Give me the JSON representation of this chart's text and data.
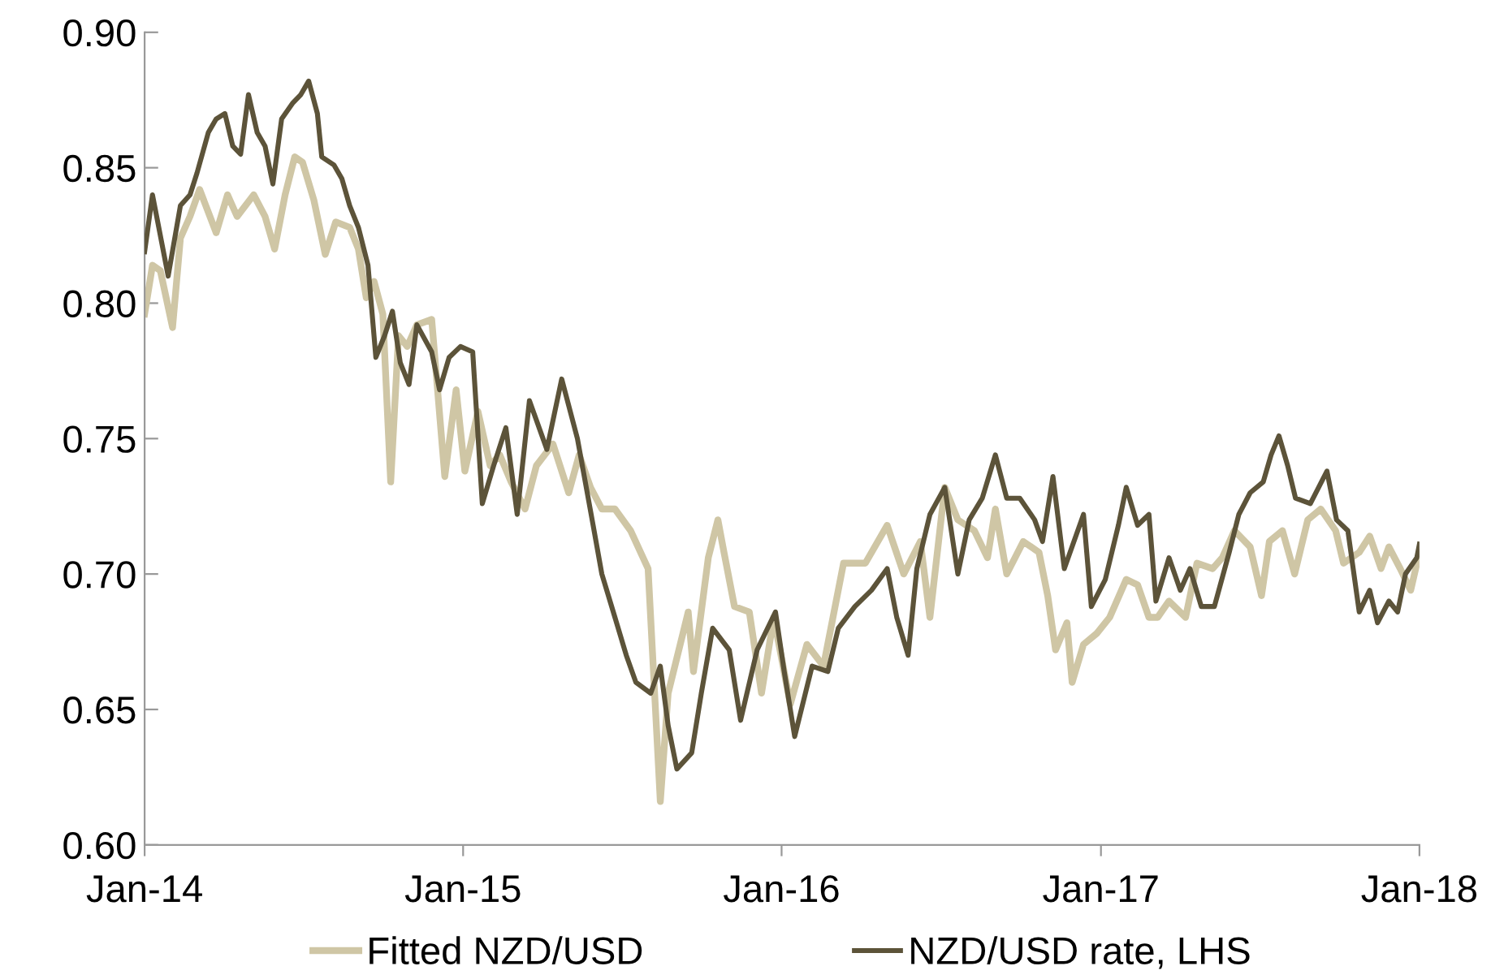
{
  "chart_data": {
    "type": "line",
    "series": [
      {
        "name": "Fitted NZD/USD",
        "color": "#cfc6a5",
        "x": [
          "2014-01-01",
          "2014-01-10",
          "2014-01-19",
          "2014-02-02",
          "2014-02-11",
          "2014-02-22",
          "2014-03-05",
          "2014-03-24",
          "2014-04-06",
          "2014-04-17",
          "2014-05-06",
          "2014-05-19",
          "2014-05-30",
          "2014-06-11",
          "2014-06-22",
          "2014-07-01",
          "2014-07-14",
          "2014-07-27",
          "2014-08-08",
          "2014-08-24",
          "2014-09-03",
          "2014-09-12",
          "2014-09-21",
          "2014-10-01",
          "2014-10-10",
          "2014-10-19",
          "2014-10-29",
          "2014-11-09",
          "2014-11-26",
          "2014-12-11",
          "2014-12-24",
          "2015-01-03",
          "2015-01-18",
          "2015-02-01",
          "2015-02-12",
          "2015-02-25",
          "2015-03-13",
          "2015-03-26",
          "2015-04-14",
          "2015-05-02",
          "2015-05-14",
          "2015-05-27",
          "2015-06-09",
          "2015-06-24",
          "2015-07-12",
          "2015-08-01",
          "2015-08-15",
          "2015-08-24",
          "2015-09-16",
          "2015-09-22",
          "2015-10-09",
          "2015-10-20",
          "2015-10-27",
          "2015-11-08",
          "2015-11-25",
          "2015-12-09",
          "2015-12-23",
          "2016-01-11",
          "2016-01-30",
          "2016-02-18",
          "2016-03-12",
          "2016-04-06",
          "2016-05-01",
          "2016-05-20",
          "2016-06-08",
          "2016-06-19",
          "2016-07-06",
          "2016-07-21",
          "2016-08-09",
          "2016-08-24",
          "2016-09-02",
          "2016-09-15",
          "2016-10-04",
          "2016-10-22",
          "2016-11-01",
          "2016-11-10",
          "2016-11-23",
          "2016-11-29",
          "2016-12-12",
          "2016-12-27",
          "2017-01-11",
          "2017-01-30",
          "2017-02-12",
          "2017-02-25",
          "2017-03-07",
          "2017-03-20",
          "2017-04-08",
          "2017-04-21",
          "2017-05-09",
          "2017-05-20",
          "2017-06-03",
          "2017-06-21",
          "2017-07-04",
          "2017-07-13",
          "2017-07-28",
          "2017-08-11",
          "2017-08-26",
          "2017-09-10",
          "2017-09-27",
          "2017-10-06",
          "2017-10-24",
          "2017-11-05",
          "2017-11-18",
          "2017-11-27",
          "2017-12-10",
          "2017-12-22",
          "2018-01-01"
        ],
        "values": [
          0.796,
          0.814,
          0.812,
          0.791,
          0.824,
          0.832,
          0.842,
          0.826,
          0.84,
          0.832,
          0.84,
          0.832,
          0.82,
          0.84,
          0.854,
          0.852,
          0.838,
          0.818,
          0.83,
          0.828,
          0.82,
          0.802,
          0.808,
          0.796,
          0.734,
          0.788,
          0.784,
          0.792,
          0.794,
          0.736,
          0.768,
          0.738,
          0.76,
          0.74,
          0.744,
          0.734,
          0.724,
          0.74,
          0.748,
          0.73,
          0.744,
          0.732,
          0.724,
          0.724,
          0.716,
          0.702,
          0.616,
          0.656,
          0.686,
          0.664,
          0.706,
          0.72,
          0.708,
          0.688,
          0.686,
          0.656,
          0.684,
          0.652,
          0.674,
          0.666,
          0.704,
          0.704,
          0.718,
          0.7,
          0.712,
          0.684,
          0.732,
          0.72,
          0.716,
          0.706,
          0.724,
          0.7,
          0.712,
          0.708,
          0.692,
          0.672,
          0.682,
          0.66,
          0.674,
          0.678,
          0.684,
          0.698,
          0.696,
          0.684,
          0.684,
          0.69,
          0.684,
          0.704,
          0.702,
          0.706,
          0.716,
          0.71,
          0.692,
          0.712,
          0.716,
          0.7,
          0.72,
          0.724,
          0.716,
          0.704,
          0.708,
          0.714,
          0.702,
          0.71,
          0.702,
          0.694,
          0.708
        ]
      },
      {
        "name": "NZD/USD rate, LHS",
        "color": "#5c5339",
        "x": [
          "2014-01-01",
          "2014-01-10",
          "2014-01-28",
          "2014-02-11",
          "2014-02-22",
          "2014-03-02",
          "2014-03-15",
          "2014-03-24",
          "2014-04-03",
          "2014-04-12",
          "2014-04-21",
          "2014-04-30",
          "2014-05-10",
          "2014-05-19",
          "2014-05-28",
          "2014-06-07",
          "2014-06-20",
          "2014-06-29",
          "2014-07-08",
          "2014-07-18",
          "2014-07-23",
          "2014-08-06",
          "2014-08-15",
          "2014-08-24",
          "2014-09-03",
          "2014-09-14",
          "2014-09-23",
          "2014-10-03",
          "2014-10-12",
          "2014-10-21",
          "2014-10-31",
          "2014-11-09",
          "2014-11-26",
          "2014-12-05",
          "2014-12-16",
          "2014-12-29",
          "2015-01-12",
          "2015-01-23",
          "2015-02-05",
          "2015-02-19",
          "2015-03-04",
          "2015-03-18",
          "2015-04-07",
          "2015-04-24",
          "2015-05-12",
          "2015-05-30",
          "2015-06-09",
          "2015-06-24",
          "2015-07-07",
          "2015-07-18",
          "2015-08-04",
          "2015-08-15",
          "2015-08-24",
          "2015-09-03",
          "2015-09-20",
          "2015-10-01",
          "2015-10-14",
          "2015-11-02",
          "2015-11-15",
          "2015-12-04",
          "2015-12-25",
          "2016-01-04",
          "2016-01-16",
          "2016-02-05",
          "2016-02-23",
          "2016-03-06",
          "2016-03-25",
          "2016-04-13",
          "2016-05-01",
          "2016-05-12",
          "2016-05-25",
          "2016-06-04",
          "2016-06-19",
          "2016-07-06",
          "2016-07-21",
          "2016-08-03",
          "2016-08-18",
          "2016-09-02",
          "2016-09-15",
          "2016-09-30",
          "2016-10-17",
          "2016-10-26",
          "2016-11-07",
          "2016-11-20",
          "2016-12-12",
          "2016-12-21",
          "2017-01-06",
          "2017-01-21",
          "2017-01-30",
          "2017-02-12",
          "2017-02-25",
          "2017-03-05",
          "2017-03-20",
          "2017-04-02",
          "2017-04-13",
          "2017-04-26",
          "2017-05-11",
          "2017-05-28",
          "2017-06-08",
          "2017-06-21",
          "2017-07-06",
          "2017-07-15",
          "2017-07-24",
          "2017-08-03",
          "2017-08-12",
          "2017-08-29",
          "2017-09-17",
          "2017-09-28",
          "2017-10-11",
          "2017-10-24",
          "2017-11-05",
          "2017-11-14",
          "2017-11-27",
          "2017-12-07",
          "2017-12-16",
          "2017-12-29",
          "2018-01-01"
        ],
        "values": [
          0.819,
          0.84,
          0.81,
          0.836,
          0.84,
          0.848,
          0.863,
          0.868,
          0.87,
          0.858,
          0.855,
          0.877,
          0.863,
          0.858,
          0.844,
          0.868,
          0.874,
          0.877,
          0.882,
          0.87,
          0.854,
          0.851,
          0.846,
          0.836,
          0.828,
          0.814,
          0.78,
          0.788,
          0.797,
          0.778,
          0.77,
          0.792,
          0.782,
          0.768,
          0.78,
          0.784,
          0.782,
          0.726,
          0.74,
          0.754,
          0.722,
          0.764,
          0.746,
          0.772,
          0.75,
          0.718,
          0.7,
          0.684,
          0.67,
          0.66,
          0.656,
          0.666,
          0.644,
          0.628,
          0.634,
          0.656,
          0.68,
          0.672,
          0.646,
          0.672,
          0.686,
          0.664,
          0.64,
          0.666,
          0.664,
          0.68,
          0.688,
          0.694,
          0.702,
          0.684,
          0.67,
          0.702,
          0.722,
          0.732,
          0.7,
          0.72,
          0.728,
          0.744,
          0.728,
          0.728,
          0.72,
          0.712,
          0.736,
          0.702,
          0.722,
          0.688,
          0.698,
          0.718,
          0.732,
          0.718,
          0.722,
          0.69,
          0.706,
          0.694,
          0.702,
          0.688,
          0.688,
          0.708,
          0.722,
          0.73,
          0.734,
          0.744,
          0.751,
          0.74,
          0.728,
          0.726,
          0.738,
          0.72,
          0.716,
          0.686,
          0.694,
          0.682,
          0.69,
          0.686,
          0.7,
          0.706,
          0.711
        ]
      }
    ],
    "xlim": [
      "2014-01-01",
      "2018-01-01"
    ],
    "xticks": [
      {
        "value": "2014-01-01",
        "label": "Jan-14"
      },
      {
        "value": "2015-01-01",
        "label": "Jan-15"
      },
      {
        "value": "2016-01-01",
        "label": "Jan-16"
      },
      {
        "value": "2017-01-01",
        "label": "Jan-17"
      },
      {
        "value": "2018-01-01",
        "label": "Jan-18"
      }
    ],
    "ylim": [
      0.6,
      0.9
    ],
    "yticks": [
      {
        "value": 0.6,
        "label": "0.60"
      },
      {
        "value": 0.65,
        "label": "0.65"
      },
      {
        "value": 0.7,
        "label": "0.70"
      },
      {
        "value": 0.75,
        "label": "0.75"
      },
      {
        "value": 0.8,
        "label": "0.80"
      },
      {
        "value": 0.85,
        "label": "0.85"
      },
      {
        "value": 0.9,
        "label": "0.90"
      }
    ],
    "legend": "bottom",
    "marker": "none",
    "line_style": "solid"
  }
}
